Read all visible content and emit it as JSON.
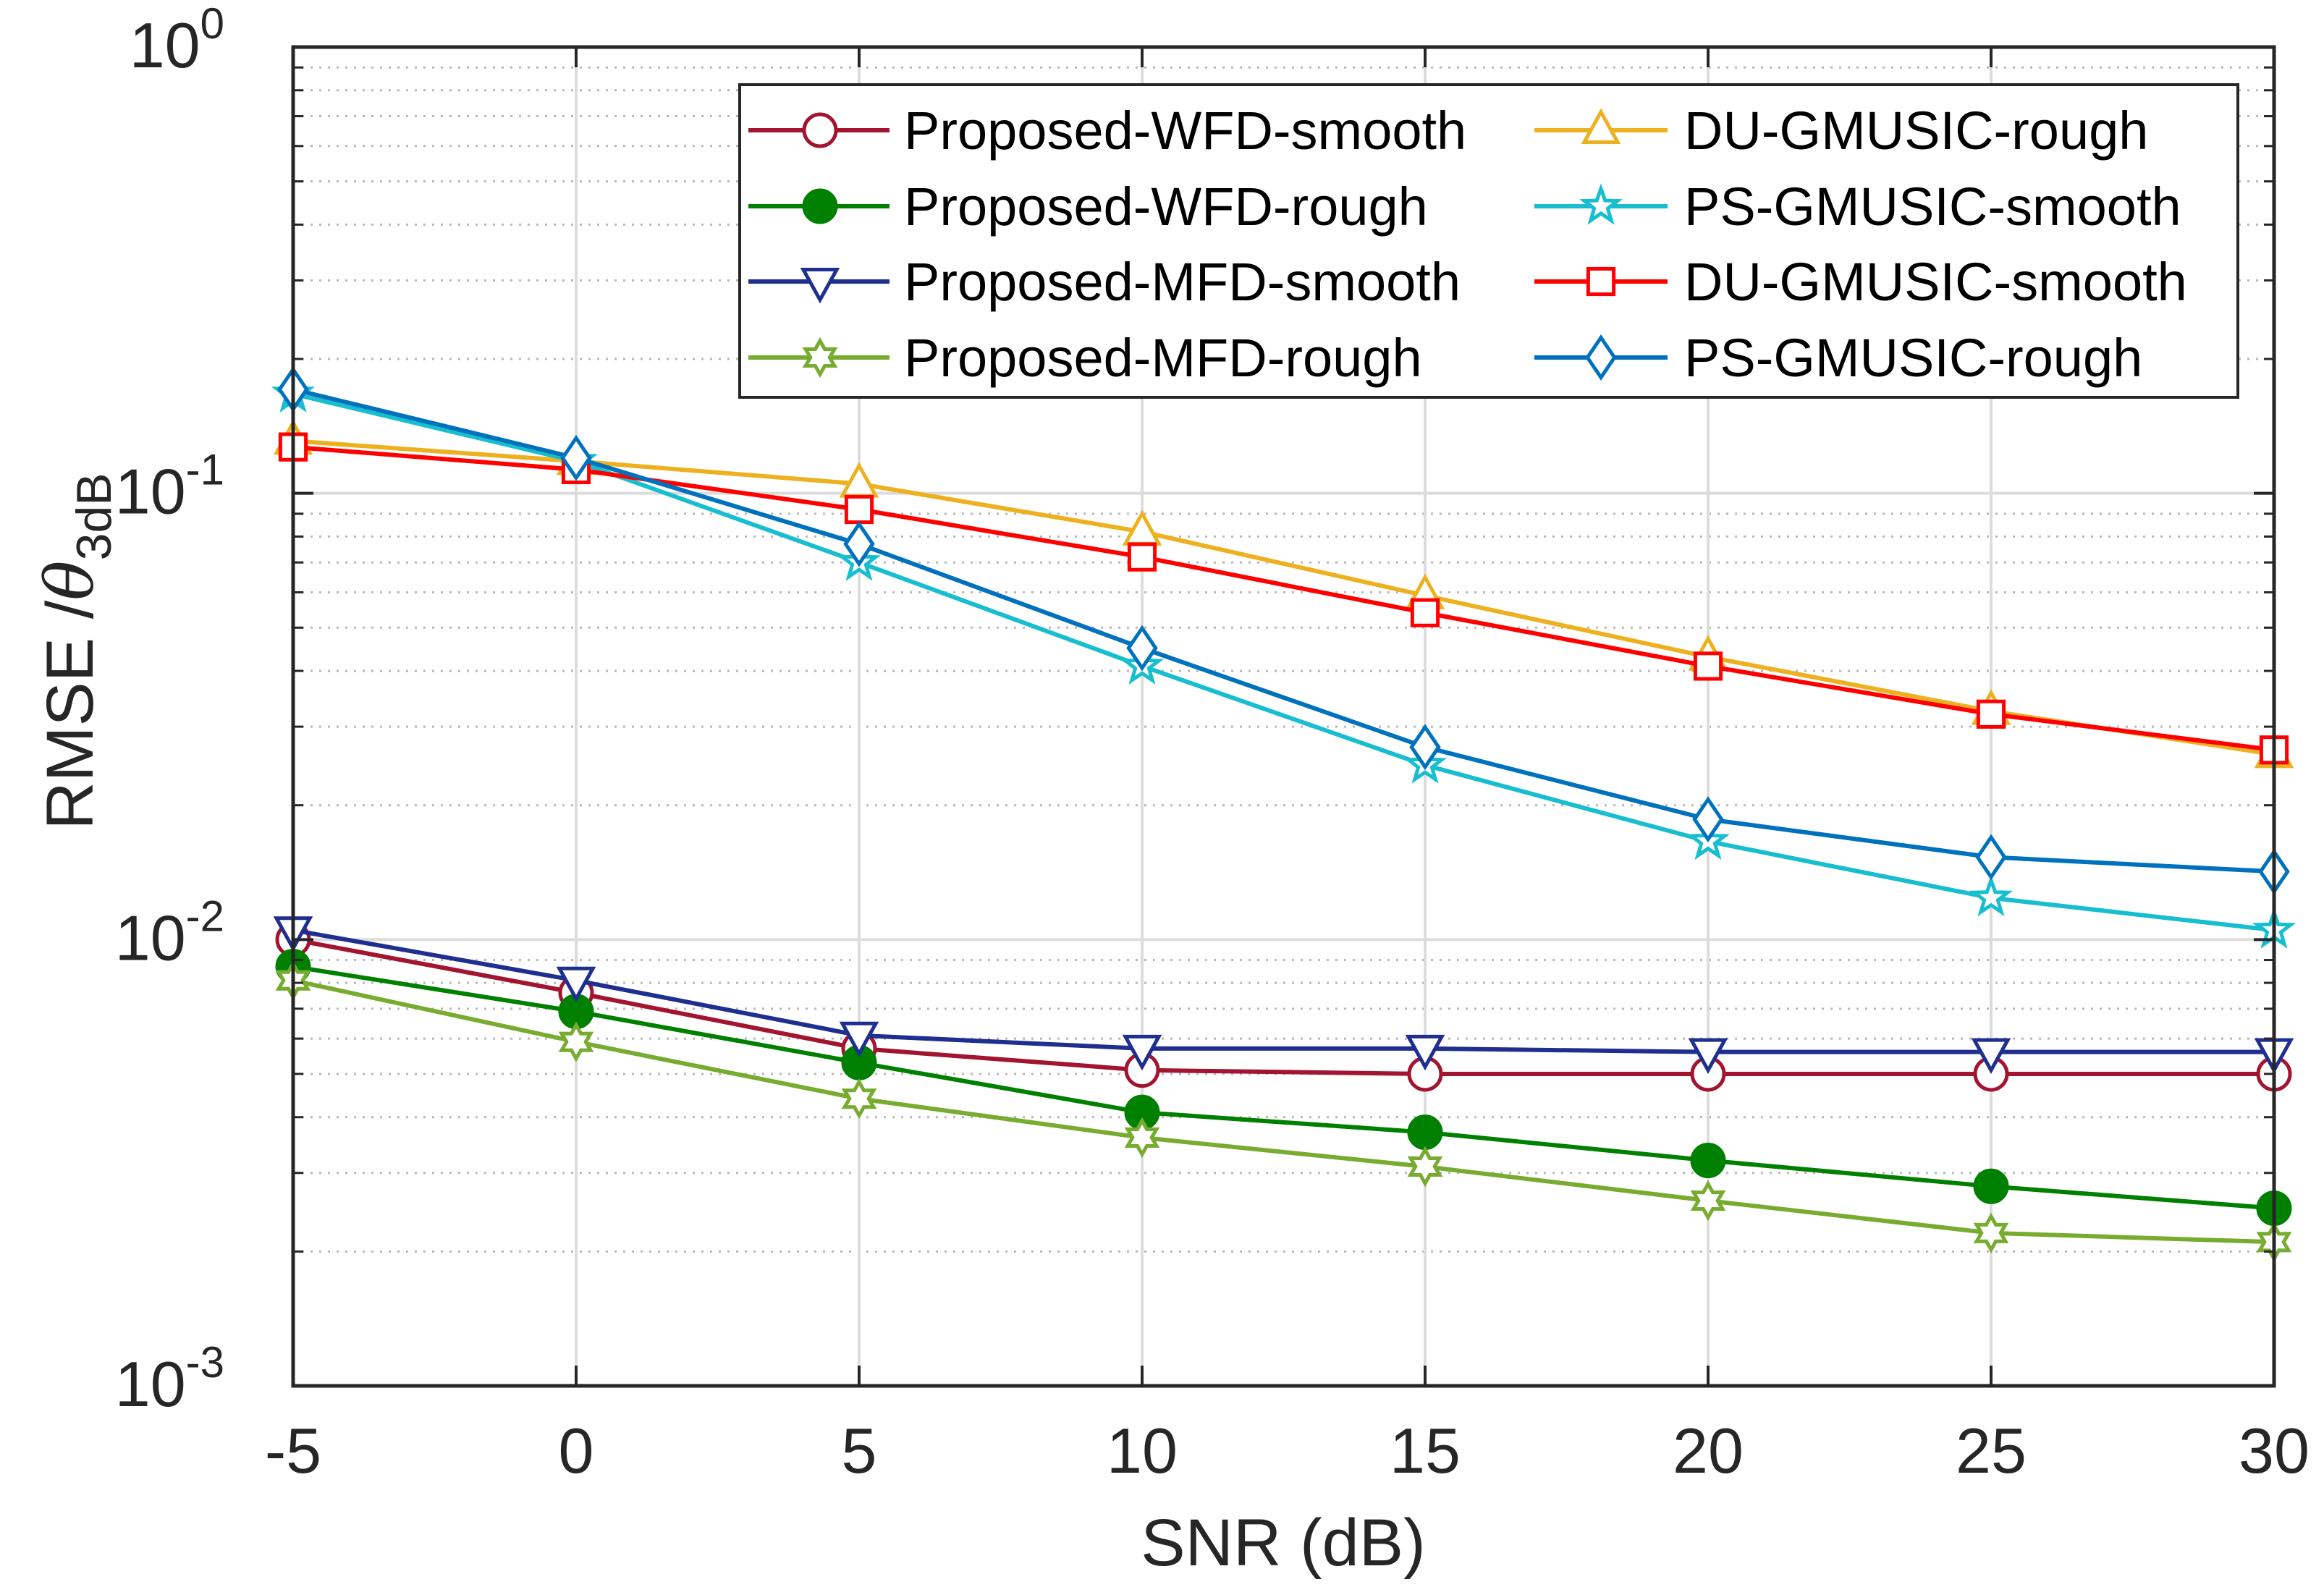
{
  "chart_data": {
    "type": "line",
    "title": "",
    "xlabel": "SNR (dB)",
    "ylabel_main": "RMSE /",
    "ylabel_theta": "θ",
    "ylabel_sub": "3dB",
    "yscale": "log",
    "xlim": [
      -5,
      30
    ],
    "ylim": [
      0.001,
      1
    ],
    "grid": true,
    "legend_position": "top-right",
    "x": [
      -5,
      0,
      5,
      10,
      15,
      20,
      25,
      30
    ],
    "xticks": [
      "-5",
      "0",
      "5",
      "10",
      "15",
      "20",
      "25",
      "30"
    ],
    "yticks": [
      {
        "base": "10",
        "exp": "0"
      },
      {
        "base": "10",
        "exp": "-1"
      },
      {
        "base": "10",
        "exp": "-2"
      },
      {
        "base": "10",
        "exp": "-3"
      }
    ],
    "series": [
      {
        "name": "Proposed-WFD-smooth",
        "color": "#A2142F",
        "marker": "circle",
        "fill": false,
        "values": [
          0.01,
          0.0076,
          0.0057,
          0.0051,
          0.005,
          0.005,
          0.005,
          0.005
        ]
      },
      {
        "name": "Proposed-WFD-rough",
        "color": "#008000",
        "marker": "circle",
        "fill": true,
        "values": [
          0.0087,
          0.0069,
          0.0053,
          0.0041,
          0.0037,
          0.0032,
          0.0028,
          0.0025
        ]
      },
      {
        "name": "Proposed-MFD-smooth",
        "color": "#1F2F8F",
        "marker": "triangle-down",
        "fill": false,
        "values": [
          0.0105,
          0.0081,
          0.0061,
          0.0057,
          0.0057,
          0.0056,
          0.0056,
          0.0056
        ]
      },
      {
        "name": "Proposed-MFD-rough",
        "color": "#77AC30",
        "marker": "hexagram",
        "fill": false,
        "values": [
          0.0081,
          0.0059,
          0.0044,
          0.0036,
          0.0031,
          0.0026,
          0.0022,
          0.0021
        ]
      },
      {
        "name": "DU-GMUSIC-rough",
        "color": "#EDB120",
        "marker": "triangle-up",
        "fill": false,
        "values": [
          0.131,
          0.118,
          0.105,
          0.082,
          0.059,
          0.043,
          0.0325,
          0.026
        ]
      },
      {
        "name": "PS-GMUSIC-smooth",
        "color": "#17BECF",
        "marker": "pentagram",
        "fill": false,
        "values": [
          0.167,
          0.118,
          0.07,
          0.041,
          0.0246,
          0.0166,
          0.0124,
          0.0105
        ]
      },
      {
        "name": "DU-GMUSIC-smooth",
        "color": "#FF0000",
        "marker": "square",
        "fill": false,
        "values": [
          0.127,
          0.113,
          0.092,
          0.072,
          0.054,
          0.041,
          0.032,
          0.0266
        ]
      },
      {
        "name": "PS-GMUSIC-rough",
        "color": "#0072BD",
        "marker": "diamond",
        "fill": false,
        "values": [
          0.171,
          0.12,
          0.077,
          0.045,
          0.027,
          0.0186,
          0.0153,
          0.0142
        ]
      }
    ]
  }
}
